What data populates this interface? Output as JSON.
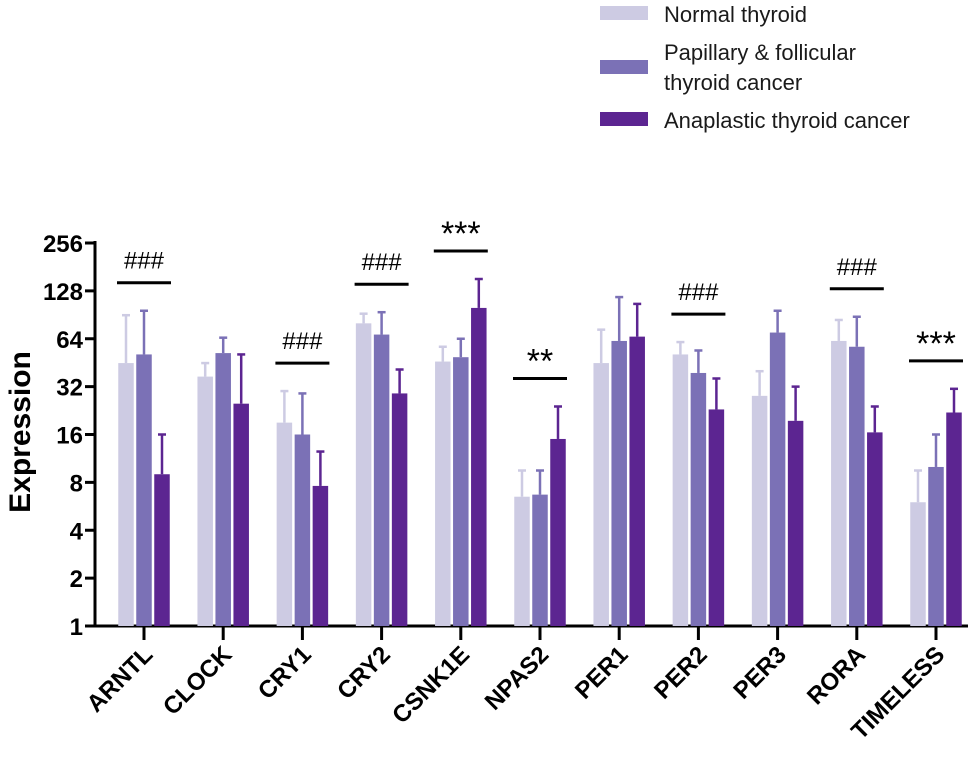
{
  "chart_data": {
    "type": "bar",
    "ylabel": "Expression",
    "xlabel": "",
    "yscale": "log2",
    "ylim": [
      1,
      256
    ],
    "yticks": [
      "1",
      "2",
      "4",
      "8",
      "16",
      "32",
      "64",
      "128",
      "256"
    ],
    "categories": [
      "ARNTL",
      "CLOCK",
      "CRY1",
      "CRY2",
      "CSNK1E",
      "NPAS2",
      "PER1",
      "PER2",
      "PER3",
      "RORA",
      "TIMELESS"
    ],
    "series": [
      {
        "name": "Normal thyroid",
        "color": "#cdcbe3",
        "values": [
          45,
          37,
          19,
          80,
          46,
          6.5,
          45,
          51,
          28,
          62,
          6
        ],
        "errors": [
          90,
          45,
          30,
          92,
          57,
          9.5,
          73,
          61,
          40,
          84,
          9.5
        ]
      },
      {
        "name": "Papillary & follicular\nthyroid cancer",
        "color": "#7b71b6",
        "values": [
          51,
          52,
          16,
          68,
          49,
          6.7,
          62,
          39,
          70,
          57,
          10
        ],
        "errors": [
          96,
          65,
          29,
          94,
          64,
          9.5,
          117,
          54,
          96,
          88,
          16
        ]
      },
      {
        "name": "Anaplastic thyroid cancer",
        "color": "#5c2591",
        "values": [
          9,
          25,
          7.6,
          29,
          100,
          15,
          66,
          23,
          19.5,
          16.5,
          22
        ],
        "errors": [
          16,
          51,
          12.5,
          41,
          152,
          24,
          106,
          36,
          32,
          24,
          31
        ]
      }
    ],
    "annotations": [
      {
        "category": "ARNTL",
        "text": "###"
      },
      {
        "category": "CRY1",
        "text": "###"
      },
      {
        "category": "CRY2",
        "text": "###"
      },
      {
        "category": "CSNK1E",
        "text": "***"
      },
      {
        "category": "NPAS2",
        "text": "**"
      },
      {
        "category": "PER2",
        "text": "###"
      },
      {
        "category": "RORA",
        "text": "###"
      },
      {
        "category": "TIMELESS",
        "text": "***"
      }
    ],
    "legend_position": "top-right"
  }
}
